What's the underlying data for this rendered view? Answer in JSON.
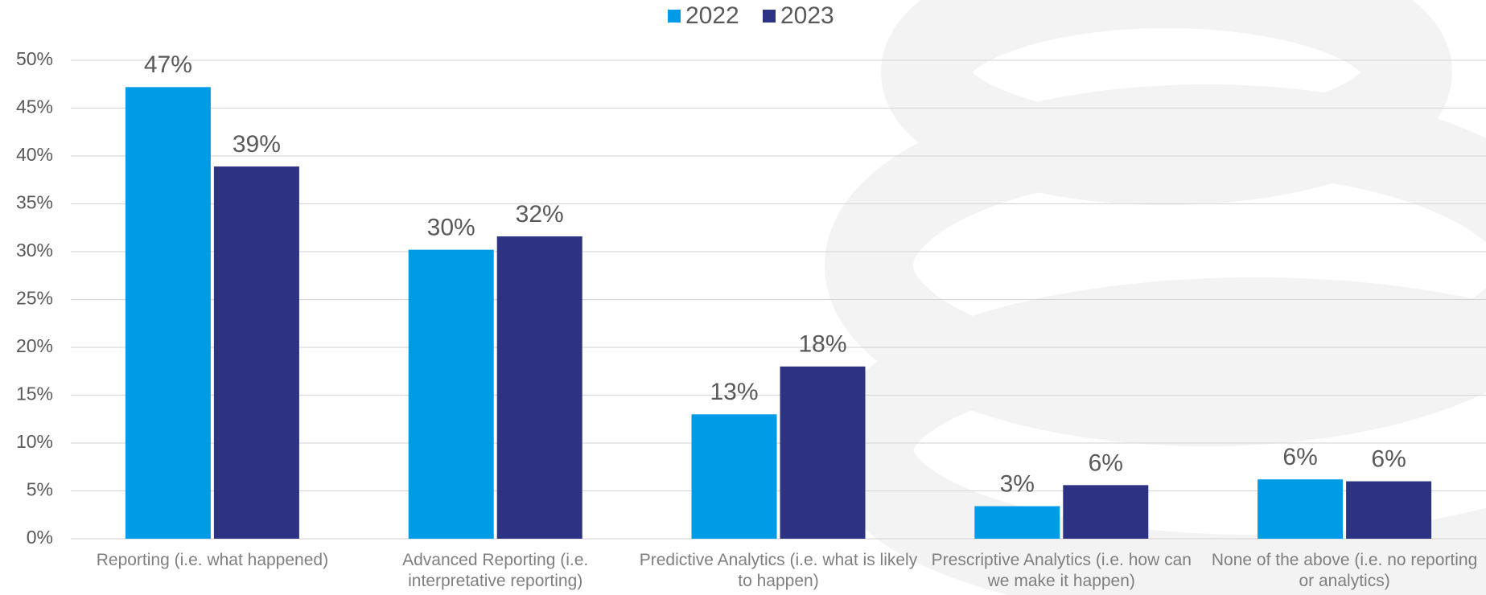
{
  "chart_data": {
    "type": "bar",
    "categories": [
      "Reporting (i.e. what happened)",
      "Advanced Reporting (i.e. interpretative reporting)",
      "Predictive Analytics (i.e. what is likely to happen)",
      "Prescriptive Analytics (i.e. how can we make it happen)",
      "None of the above (i.e. no reporting or analytics)"
    ],
    "series": [
      {
        "name": "2022",
        "color": "#009be6",
        "values": [
          47.2,
          30.2,
          13,
          3.4,
          6.2
        ],
        "value_labels": [
          "47%",
          "30%",
          "13%",
          "3%",
          "6%"
        ]
      },
      {
        "name": "2023",
        "color": "#2e3282",
        "values": [
          38.9,
          31.6,
          18,
          5.6,
          6
        ],
        "value_labels": [
          "39%",
          "32%",
          "18%",
          "6%",
          "6%"
        ]
      }
    ],
    "ylim": [
      0,
      50
    ],
    "yticks": [
      {
        "value": 0,
        "label": "0%"
      },
      {
        "value": 5,
        "label": "5%"
      },
      {
        "value": 10,
        "label": "10%"
      },
      {
        "value": 15,
        "label": "15%"
      },
      {
        "value": 20,
        "label": "20%"
      },
      {
        "value": 25,
        "label": "25%"
      },
      {
        "value": 30,
        "label": "30%"
      },
      {
        "value": 35,
        "label": "35%"
      },
      {
        "value": 40,
        "label": "40%"
      },
      {
        "value": 45,
        "label": "45%"
      },
      {
        "value": 50,
        "label": "50%"
      }
    ],
    "grid": true,
    "legend": "top"
  }
}
